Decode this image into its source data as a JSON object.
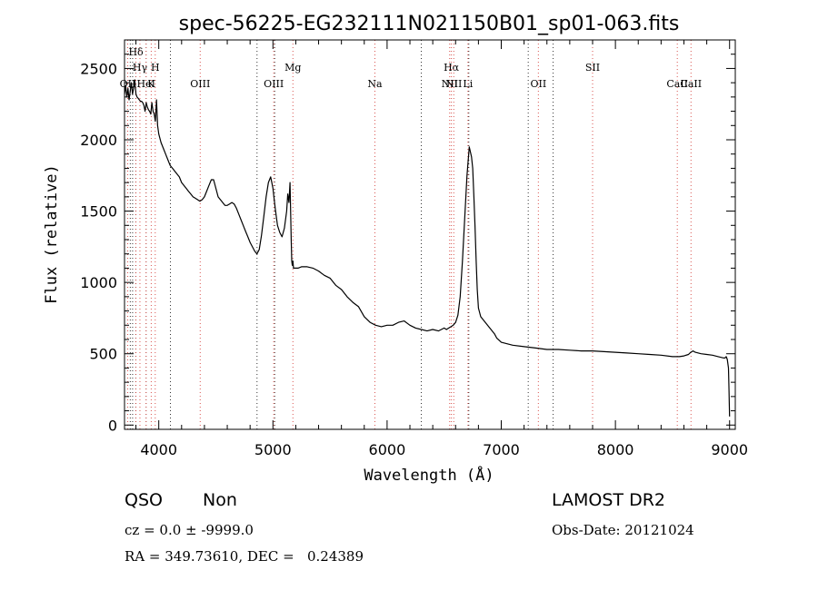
{
  "chart_data": {
    "type": "line",
    "title": "spec-56225-EG232111N021150B01_sp01-063.fits",
    "xlabel": "Wavelength (Å)",
    "ylabel": "Flux (relative)",
    "xlim": [
      3700,
      9050
    ],
    "ylim": [
      -30,
      2700
    ],
    "xticks": [
      4000,
      5000,
      6000,
      7000,
      8000,
      9000
    ],
    "yticks": [
      0,
      500,
      1000,
      1500,
      2000,
      2500
    ],
    "grid": false,
    "colors": {
      "spectrum": "#000000",
      "lines": "#d9534f"
    },
    "series": [
      {
        "x": [
          3700,
          3710,
          3720,
          3730,
          3740,
          3750,
          3760,
          3770,
          3780,
          3790,
          3800,
          3810,
          3820,
          3830,
          3840,
          3850,
          3860,
          3870,
          3880,
          3890,
          3900,
          3910,
          3920,
          3930,
          3940,
          3950,
          3960,
          3970,
          3980,
          3990,
          4000,
          4020,
          4040,
          4060,
          4080,
          4100,
          4120,
          4140,
          4160,
          4180,
          4200,
          4220,
          4240,
          4260,
          4280,
          4300,
          4320,
          4340,
          4360,
          4380,
          4400,
          4420,
          4440,
          4460,
          4480,
          4500,
          4520,
          4540,
          4560,
          4580,
          4600,
          4620,
          4640,
          4660,
          4680,
          4700,
          4720,
          4740,
          4760,
          4780,
          4800,
          4820,
          4840,
          4860,
          4880,
          4900,
          4920,
          4940,
          4960,
          4980,
          5000,
          5020,
          5040,
          5060,
          5080,
          5100,
          5120,
          5130,
          5140,
          5150,
          5160,
          5165,
          5170,
          5175,
          5180,
          5190,
          5200,
          5220,
          5250,
          5300,
          5350,
          5400,
          5450,
          5500,
          5550,
          5600,
          5650,
          5700,
          5750,
          5800,
          5850,
          5900,
          5950,
          6000,
          6050,
          6100,
          6150,
          6200,
          6250,
          6300,
          6350,
          6400,
          6450,
          6500,
          6520,
          6540,
          6560,
          6580,
          6600,
          6620,
          6640,
          6660,
          6680,
          6700,
          6720,
          6740,
          6750,
          6760,
          6770,
          6780,
          6790,
          6800,
          6820,
          6840,
          6860,
          6880,
          6900,
          6920,
          6940,
          6960,
          7000,
          7100,
          7200,
          7300,
          7400,
          7500,
          7600,
          7700,
          7800,
          7900,
          8000,
          8100,
          8200,
          8300,
          8400,
          8500,
          8560,
          8600,
          8640,
          8660,
          8680,
          8700,
          8750,
          8800,
          8850,
          8900,
          8950,
          8960,
          8970,
          8980,
          8990,
          8995,
          9000
        ],
        "y": [
          2320,
          2380,
          2300,
          2360,
          2280,
          2340,
          2400,
          2320,
          2360,
          2420,
          2320,
          2300,
          2290,
          2280,
          2270,
          2270,
          2260,
          2240,
          2200,
          2260,
          2230,
          2210,
          2200,
          2180,
          2260,
          2200,
          2180,
          2130,
          2280,
          2100,
          2040,
          1980,
          1940,
          1900,
          1860,
          1820,
          1800,
          1780,
          1760,
          1740,
          1700,
          1680,
          1660,
          1640,
          1620,
          1600,
          1590,
          1580,
          1570,
          1580,
          1600,
          1640,
          1680,
          1720,
          1720,
          1660,
          1600,
          1580,
          1560,
          1540,
          1540,
          1550,
          1560,
          1550,
          1520,
          1480,
          1440,
          1400,
          1360,
          1320,
          1280,
          1250,
          1220,
          1200,
          1230,
          1330,
          1460,
          1600,
          1700,
          1740,
          1660,
          1520,
          1400,
          1350,
          1320,
          1380,
          1500,
          1620,
          1560,
          1700,
          1300,
          1150,
          1120,
          1150,
          1100,
          1100,
          1100,
          1100,
          1110,
          1110,
          1100,
          1080,
          1050,
          1030,
          980,
          950,
          900,
          860,
          830,
          760,
          720,
          700,
          690,
          700,
          700,
          720,
          730,
          700,
          680,
          670,
          660,
          670,
          660,
          680,
          670,
          680,
          690,
          700,
          720,
          770,
          900,
          1150,
          1450,
          1750,
          1950,
          1880,
          1800,
          1600,
          1400,
          1150,
          950,
          820,
          760,
          740,
          720,
          700,
          680,
          660,
          640,
          610,
          580,
          560,
          550,
          540,
          530,
          530,
          525,
          520,
          520,
          515,
          510,
          505,
          500,
          495,
          490,
          480,
          480,
          485,
          495,
          510,
          520,
          510,
          500,
          495,
          490,
          480,
          470,
          470,
          480,
          460,
          400,
          240,
          60
        ]
      }
    ],
    "spectral_lines": [
      {
        "label": "OII",
        "wl": 3728,
        "row": 3
      },
      {
        "label": "Hγ",
        "wl": 3835,
        "row": 1
      },
      {
        "label": "Hδ",
        "wl": 3800,
        "row": 0
      },
      {
        "label": "HeI",
        "wl": 3889,
        "row": 3
      },
      {
        "label": "H",
        "wl": 3969,
        "row": 1
      },
      {
        "label": "K",
        "wl": 3934,
        "row": 2
      },
      {
        "label": "OIII",
        "wl": 4363,
        "row": 3
      },
      {
        "label": "OIII",
        "wl": 5007,
        "row": 2
      },
      {
        "label": "Mg",
        "wl": 5175,
        "row": 1
      },
      {
        "label": "Na",
        "wl": 5893,
        "row": 3
      },
      {
        "label": "Hα",
        "wl": 6563,
        "row": 1
      },
      {
        "label": "NII",
        "wl": 6548,
        "row": 2
      },
      {
        "label": "NII",
        "wl": 6584,
        "row": 3
      },
      {
        "label": "Li",
        "wl": 6708,
        "row": 2
      },
      {
        "label": "OII",
        "wl": 7325,
        "row": 2
      },
      {
        "label": "SII",
        "wl": 7800,
        "row": 1
      },
      {
        "label": "CaII",
        "wl": 8542,
        "row": 3
      },
      {
        "label": "CaII",
        "wl": 8662,
        "row": 2
      }
    ],
    "extra_dotted_lines": [
      3750,
      3771,
      3798,
      3889,
      4102,
      4861,
      5015,
      6300,
      6716,
      7236,
      7455
    ]
  },
  "footer": {
    "class_label": "QSO",
    "subclass_label": "Non",
    "cz_text": "cz = 0.0 ± -9999.0",
    "radec_text": "RA = 349.73610, DEC =   0.24389",
    "survey": "LAMOST DR2",
    "obs_date": "Obs-Date: 20121024"
  }
}
